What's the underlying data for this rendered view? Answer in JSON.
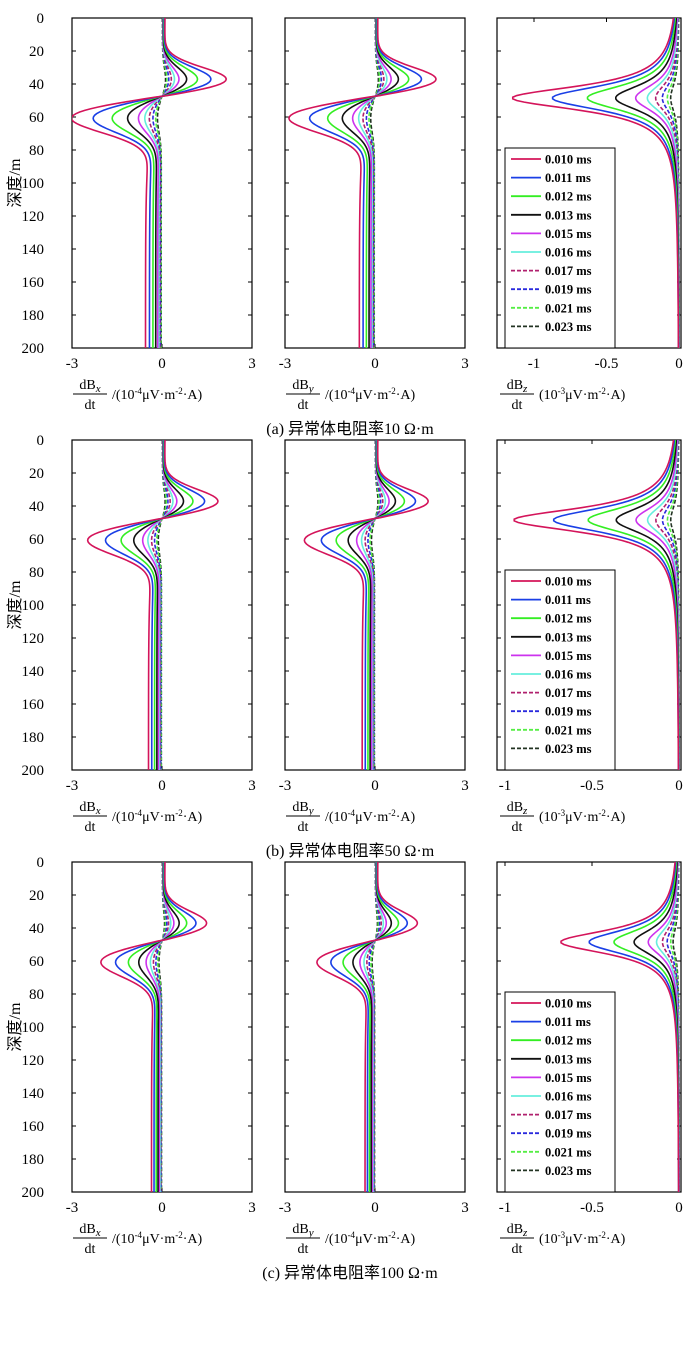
{
  "figure": {
    "ylabel": "深度/m",
    "xlabels": {
      "bx": {
        "num": "dB",
        "sub": "x",
        "den": "dt",
        "unit": "/(10-4μV·m-2·A)",
        "unit_pre": "/(10",
        "unit_exp": "-4",
        "unit_mid": "μV·m",
        "unit_exp2": "-2",
        "unit_post": "·A)"
      },
      "by": {
        "num": "dB",
        "sub": "y",
        "den": "dt",
        "unit": "/(10-4μV·m-2·A)",
        "unit_pre": "/(10",
        "unit_exp": "-4",
        "unit_mid": "μV·m",
        "unit_exp2": "-2",
        "unit_post": "·A)"
      },
      "bz": {
        "num": "dB",
        "sub": "z",
        "den": "dt",
        "unit": "/(10-3μV·m-2·A)",
        "unit_pre": "(10",
        "unit_exp": "-3",
        "unit_mid": "μV·m",
        "unit_exp2": "-2",
        "unit_post": "·A)"
      }
    },
    "captions": [
      "(a) 异常体电阻率10 Ω·m",
      "(b) 异常体电阻率50 Ω·m",
      "(c) 异常体电阻率100 Ω·m"
    ],
    "y_ticks": [
      0,
      20,
      40,
      60,
      80,
      100,
      120,
      140,
      160,
      180,
      200
    ],
    "xy_ticks": [
      "-3",
      "0",
      "3"
    ],
    "legend": {
      "labels": [
        "0.010 ms",
        "0.011 ms",
        "0.012 ms",
        "0.013 ms",
        "0.015 ms",
        "0.016 ms",
        "0.017 ms",
        "0.019 ms",
        "0.021 ms",
        "0.023 ms"
      ],
      "colors": [
        "#d4145a",
        "#1a3fe6",
        "#33ee22",
        "#111111",
        "#cc33ee",
        "#66eedd",
        "#b0206e",
        "#2a2add",
        "#55ee44",
        "#223322"
      ],
      "dashed": [
        false,
        false,
        false,
        false,
        false,
        false,
        true,
        true,
        true,
        true
      ]
    }
  },
  "chart_data": [
    {
      "type": "line",
      "panel": "a-x",
      "xlabel": "dBx/dt /(10-4μV·m-2·A)",
      "ylabel": "深度/m",
      "xlim": [
        -3,
        3
      ],
      "ylim": [
        200,
        0
      ],
      "x_ticks": [
        -3,
        0,
        3
      ],
      "series": [
        {
          "name": "0.010 ms",
          "x": [
            0.3,
            2.2,
            0.0,
            -2.8,
            -0.6,
            -0.3
          ],
          "y": [
            0,
            37,
            48,
            62,
            110,
            195
          ]
        },
        {
          "name": "0.011 ms",
          "x": [
            0.25,
            1.7,
            0.0,
            -2.2,
            -0.4,
            -0.25
          ],
          "y": [
            0,
            37,
            48,
            60,
            110,
            195
          ]
        },
        {
          "name": "0.012 ms",
          "x": [
            0.2,
            1.2,
            0.0,
            -1.6,
            -0.3,
            -0.2
          ],
          "y": [
            0,
            38,
            48,
            58,
            110,
            195
          ]
        },
        {
          "name": "0.013 ms",
          "x": [
            0.15,
            0.8,
            0.0,
            -1.1,
            -0.2,
            -0.15
          ],
          "y": [
            0,
            39,
            48,
            57,
            110,
            195
          ]
        },
        {
          "name": "0.015 ms",
          "x": [
            0.12,
            0.55,
            0.0,
            -0.7,
            -0.15,
            -0.1
          ],
          "y": [
            0,
            40,
            48,
            56,
            110,
            195
          ]
        },
        {
          "name": "0.016 ms",
          "x": [
            0.1,
            0.4,
            0.0,
            -0.5,
            -0.12,
            -0.1
          ],
          "y": [
            0,
            40,
            48,
            56,
            110,
            195
          ]
        },
        {
          "name": "0.017 ms",
          "x": [
            0.08,
            0.3,
            0.0,
            -0.4,
            -0.1,
            -0.08
          ],
          "y": [
            0,
            41,
            48,
            55,
            110,
            195
          ]
        },
        {
          "name": "0.019 ms",
          "x": [
            0.06,
            0.2,
            0.0,
            -0.25,
            -0.08,
            -0.06
          ],
          "y": [
            0,
            41,
            48,
            55,
            110,
            195
          ]
        },
        {
          "name": "0.021 ms",
          "x": [
            0.05,
            0.15,
            0.0,
            -0.18,
            -0.06,
            -0.05
          ],
          "y": [
            0,
            42,
            48,
            54,
            110,
            195
          ]
        },
        {
          "name": "0.023 ms",
          "x": [
            0.04,
            0.1,
            0.0,
            -0.12,
            -0.05,
            -0.04
          ],
          "y": [
            0,
            42,
            48,
            54,
            110,
            195
          ]
        }
      ]
    },
    {
      "type": "line",
      "panel": "a-y",
      "xlabel": "dBy/dt /(10-4μV·m-2·A)",
      "ylabel": "深度/m",
      "xlim": [
        -3,
        3
      ],
      "ylim": [
        200,
        0
      ],
      "x_ticks": [
        -3,
        0,
        3
      ],
      "series": [
        {
          "name": "0.010 ms",
          "x": [
            0.3,
            2.0,
            0.0,
            -2.8,
            -0.5,
            -0.4
          ],
          "y": [
            0,
            37,
            48,
            62,
            110,
            195
          ]
        },
        {
          "name": "0.011 ms",
          "x": [
            0.25,
            1.5,
            0.0,
            -2.1,
            -0.4,
            -0.3
          ],
          "y": [
            0,
            37,
            48,
            60,
            110,
            195
          ]
        },
        {
          "name": "0.012 ms",
          "x": [
            0.2,
            1.1,
            0.0,
            -1.5,
            -0.3,
            -0.2
          ],
          "y": [
            0,
            38,
            48,
            58,
            110,
            195
          ]
        },
        {
          "name": "0.013 ms",
          "x": [
            0.15,
            0.75,
            0.0,
            -1.0,
            -0.2,
            -0.15
          ],
          "y": [
            0,
            39,
            48,
            57,
            110,
            195
          ]
        }
      ]
    },
    {
      "type": "line",
      "panel": "a-z",
      "xlabel": "dBz/dt (10-3μV·m-2·A)",
      "ylabel": "深度/m",
      "xlim": [
        -1.2,
        0
      ],
      "ylim": [
        200,
        0
      ],
      "x_ticks": [
        -1,
        -0.5,
        0
      ],
      "series": [
        {
          "name": "0.010 ms",
          "x": [
            0,
            -0.1,
            -1.15,
            -0.1,
            0
          ],
          "y": [
            0,
            30,
            48,
            68,
            200
          ]
        },
        {
          "name": "0.011 ms",
          "x": [
            0,
            -0.08,
            -0.8,
            -0.08,
            0
          ],
          "y": [
            0,
            30,
            48,
            66,
            200
          ]
        },
        {
          "name": "0.012 ms",
          "x": [
            0,
            -0.06,
            -0.6,
            -0.06,
            0
          ],
          "y": [
            0,
            32,
            48,
            64,
            200
          ]
        },
        {
          "name": "0.013 ms",
          "x": [
            0,
            -0.04,
            -0.45,
            -0.04,
            0
          ],
          "y": [
            0,
            33,
            48,
            63,
            200
          ]
        }
      ]
    },
    {
      "type": "line",
      "panel": "b-z",
      "xlabel": "dBz/dt (10-3μV·m-2·A)",
      "ylabel": "深度/m",
      "xlim": [
        -1,
        0
      ],
      "ylim": [
        200,
        0
      ],
      "x_ticks": [
        -1,
        -0.5,
        0
      ],
      "series": [
        {
          "name": "0.010 ms",
          "x": [
            0,
            -0.1,
            -0.95,
            -0.1,
            0
          ],
          "y": [
            0,
            30,
            48,
            68,
            200
          ]
        },
        {
          "name": "0.011 ms",
          "x": [
            0,
            -0.08,
            -0.65,
            -0.08,
            0
          ],
          "y": [
            0,
            30,
            48,
            66,
            200
          ]
        }
      ]
    },
    {
      "type": "line",
      "panel": "c-z",
      "xlabel": "dBz/dt (10-3μV·m-2·A)",
      "ylabel": "深度/m",
      "xlim": [
        -1,
        0
      ],
      "ylim": [
        200,
        0
      ],
      "x_ticks": [
        -1,
        -0.5,
        0
      ],
      "series": [
        {
          "name": "0.010 ms",
          "x": [
            0,
            -0.08,
            -0.68,
            -0.08,
            0
          ],
          "y": [
            0,
            30,
            48,
            66,
            200
          ]
        },
        {
          "name": "0.011 ms",
          "x": [
            0,
            -0.06,
            -0.48,
            -0.06,
            0
          ],
          "y": [
            0,
            31,
            48,
            65,
            200
          ]
        }
      ]
    }
  ]
}
